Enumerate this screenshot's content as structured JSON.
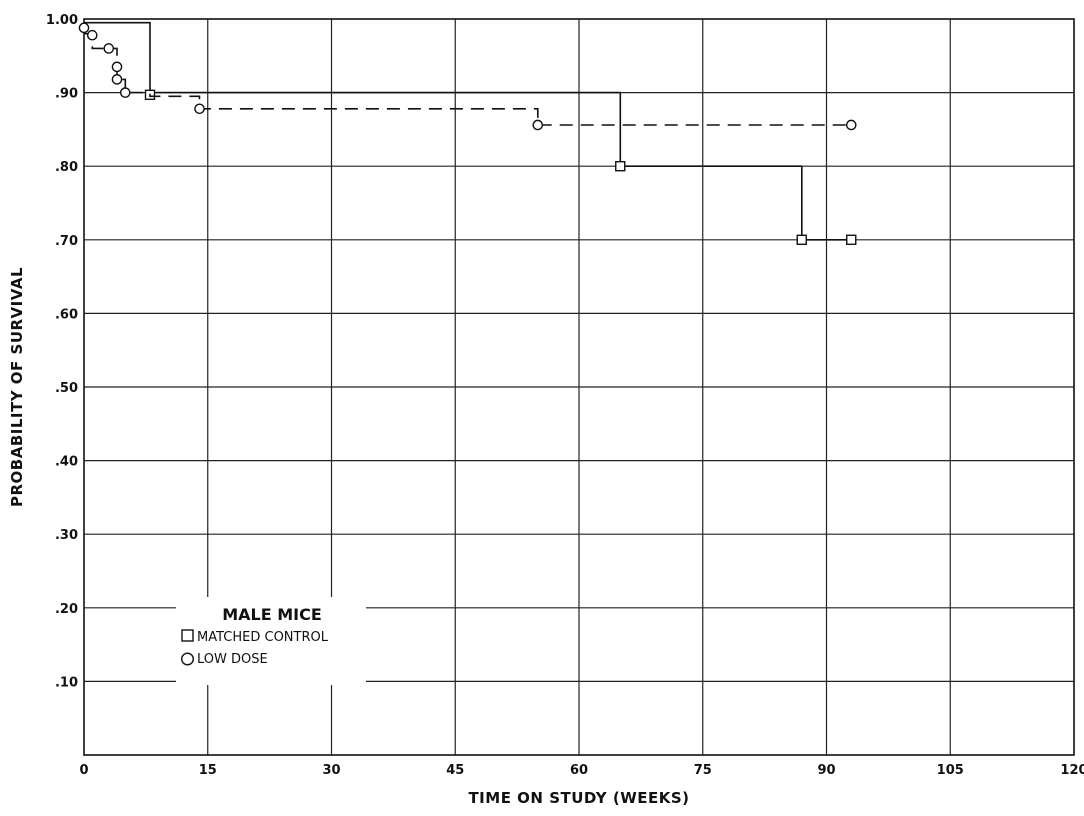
{
  "chart_data": {
    "type": "line",
    "step": true,
    "xlabel": "TIME ON STUDY (WEEKS)",
    "ylabel": "PROBABILITY OF SURVIVAL",
    "xlim": [
      0,
      120
    ],
    "ylim": [
      0,
      1.0
    ],
    "x_ticks": [
      0,
      15,
      30,
      45,
      60,
      75,
      90,
      105,
      120
    ],
    "x_tick_labels": [
      "0",
      "15",
      "30",
      "45",
      "60",
      "75",
      "90",
      "105",
      "120"
    ],
    "y_ticks": [
      0.1,
      0.2,
      0.3,
      0.4,
      0.5,
      0.6,
      0.7,
      0.8,
      0.9,
      1.0
    ],
    "y_tick_labels": [
      ".10",
      ".20",
      ".30",
      ".40",
      ".50",
      ".60",
      ".70",
      ".80",
      ".90",
      "1.00"
    ],
    "grid": true,
    "legend": {
      "title": "MALE MICE",
      "position": "lower-left",
      "entries": [
        "MATCHED CONTROL",
        "LOW DOSE"
      ]
    },
    "series": [
      {
        "name": "MATCHED CONTROL",
        "marker": "square",
        "line": "solid",
        "color": "#111111",
        "step_points": [
          [
            0,
            0.995
          ],
          [
            8,
            0.995
          ],
          [
            8,
            0.9
          ],
          [
            65,
            0.9
          ],
          [
            65,
            0.8
          ],
          [
            87,
            0.8
          ],
          [
            87,
            0.7
          ],
          [
            93,
            0.7
          ]
        ],
        "markers": [
          [
            8,
            0.897
          ],
          [
            65,
            0.8
          ],
          [
            87,
            0.7
          ],
          [
            93,
            0.7
          ]
        ]
      },
      {
        "name": "LOW DOSE",
        "marker": "circle",
        "line": "dashed",
        "color": "#111111",
        "step_points": [
          [
            0,
            0.98
          ],
          [
            1,
            0.98
          ],
          [
            1,
            0.96
          ],
          [
            3,
            0.96
          ],
          [
            3,
            0.96
          ],
          [
            4,
            0.96
          ],
          [
            4,
            0.935
          ],
          [
            4,
            0.918
          ],
          [
            5,
            0.918
          ],
          [
            5,
            0.9
          ],
          [
            8,
            0.9
          ],
          [
            8,
            0.895
          ],
          [
            14,
            0.895
          ],
          [
            14,
            0.878
          ],
          [
            55,
            0.878
          ],
          [
            55,
            0.856
          ],
          [
            93,
            0.856
          ]
        ],
        "markers": [
          [
            0,
            0.988
          ],
          [
            1,
            0.978
          ],
          [
            3,
            0.96
          ],
          [
            4,
            0.935
          ],
          [
            4,
            0.918
          ],
          [
            5,
            0.9
          ],
          [
            14,
            0.878
          ],
          [
            55,
            0.856
          ],
          [
            93,
            0.856
          ]
        ]
      }
    ]
  }
}
